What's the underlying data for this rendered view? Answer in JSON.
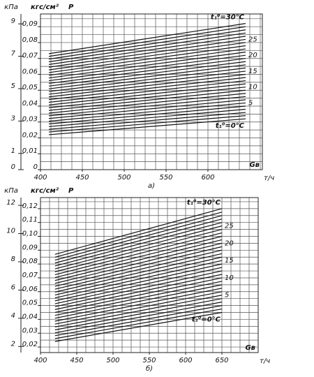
{
  "chart_data": [
    {
      "type": "line",
      "y2label": "кПа",
      "ylabel": "кгс/см²",
      "var_label": "P",
      "xvar": "Gв",
      "xlabel": "т/ч",
      "caption": "а)",
      "xlim": [
        400,
        665
      ],
      "xticks": [
        400,
        450,
        500,
        550,
        600
      ],
      "ylim": [
        0,
        0.098
      ],
      "yticks": [
        0,
        {
          "value": 0.01,
          "label": "0,01"
        },
        {
          "value": 0.02,
          "label": "0,02"
        },
        {
          "value": 0.03,
          "label": "0,03"
        },
        {
          "value": 0.04,
          "label": "0,04"
        },
        {
          "value": 0.05,
          "label": "0,05"
        },
        {
          "value": 0.06,
          "label": "0,06"
        },
        {
          "value": 0.07,
          "label": "0,07"
        },
        {
          "value": 0.08,
          "label": "0,08"
        },
        {
          "value": 0.09,
          "label": "0,09"
        }
      ],
      "y2lim": [
        0,
        9.61
      ],
      "y2ticks": [
        0,
        1,
        3,
        5,
        7,
        9
      ],
      "xgrid": [
        400,
        412.5,
        425,
        437.5,
        450,
        462.5,
        475,
        487.5,
        500,
        512.5,
        525,
        537.5,
        550,
        562.5,
        575,
        587.5,
        600,
        612.5,
        625,
        637.5,
        650,
        662.5
      ],
      "ygrid": [
        0,
        0.005,
        0.01,
        0.015,
        0.02,
        0.025,
        0.03,
        0.035,
        0.04,
        0.045,
        0.05,
        0.055,
        0.06,
        0.065,
        0.07,
        0.075,
        0.08,
        0.085,
        0.09,
        0.095
      ],
      "color": "#111111",
      "x": [
        410,
        645
      ],
      "series": [
        {
          "name": "t₁⁰=0°C",
          "values": [
            0.022,
            0.032
          ]
        },
        {
          "values": [
            0.0237,
            0.034
          ]
        },
        {
          "values": [
            0.0254,
            0.036
          ]
        },
        {
          "values": [
            0.0271,
            0.038
          ]
        },
        {
          "values": [
            0.0288,
            0.04
          ]
        },
        {
          "name": "5",
          "values": [
            0.0305,
            0.042
          ]
        },
        {
          "values": [
            0.0322,
            0.044
          ]
        },
        {
          "values": [
            0.0339,
            0.046
          ]
        },
        {
          "values": [
            0.0356,
            0.048
          ]
        },
        {
          "values": [
            0.0373,
            0.05
          ]
        },
        {
          "name": "10",
          "values": [
            0.039,
            0.052
          ]
        },
        {
          "values": [
            0.0407,
            0.054
          ]
        },
        {
          "values": [
            0.0424,
            0.056
          ]
        },
        {
          "values": [
            0.0441,
            0.058
          ]
        },
        {
          "values": [
            0.0458,
            0.06
          ]
        },
        {
          "name": "15",
          "values": [
            0.0475,
            0.062
          ]
        },
        {
          "values": [
            0.0492,
            0.064
          ]
        },
        {
          "values": [
            0.0509,
            0.066
          ]
        },
        {
          "values": [
            0.0526,
            0.068
          ]
        },
        {
          "values": [
            0.0543,
            0.07
          ]
        },
        {
          "name": "20",
          "values": [
            0.056,
            0.072
          ]
        },
        {
          "values": [
            0.0577,
            0.074
          ]
        },
        {
          "values": [
            0.0594,
            0.076
          ]
        },
        {
          "values": [
            0.0611,
            0.078
          ]
        },
        {
          "values": [
            0.0628,
            0.08
          ]
        },
        {
          "name": "25",
          "values": [
            0.0645,
            0.082
          ]
        },
        {
          "values": [
            0.0662,
            0.084
          ]
        },
        {
          "values": [
            0.0679,
            0.086
          ]
        },
        {
          "values": [
            0.0696,
            0.088
          ]
        },
        {
          "values": [
            0.0713,
            0.09
          ]
        },
        {
          "name": "t₁⁰=30°C",
          "values": [
            0.073,
            0.092
          ]
        }
      ]
    },
    {
      "type": "line",
      "y2label": "кПа",
      "ylabel": "кгс/см²",
      "var_label": "P",
      "xvar": "Gв",
      "xlabel": "т/ч",
      "caption": "б)",
      "xlim": [
        400,
        700
      ],
      "xticks": [
        400,
        450,
        500,
        550,
        600,
        650
      ],
      "ylim": [
        0.016,
        0.128
      ],
      "yticks": [
        {
          "value": 0.02,
          "label": "0,02"
        },
        {
          "value": 0.03,
          "label": "0,03"
        },
        {
          "value": 0.04,
          "label": "0,04"
        },
        {
          "value": 0.05,
          "label": "0,05"
        },
        {
          "value": 0.06,
          "label": "0,06"
        },
        {
          "value": 0.07,
          "label": "0,07"
        },
        {
          "value": 0.08,
          "label": "0,08"
        },
        {
          "value": 0.09,
          "label": "0,09"
        },
        {
          "value": 0.1,
          "label": "0,10"
        },
        {
          "value": 0.11,
          "label": "0,11"
        },
        {
          "value": 0.12,
          "label": "0,12"
        }
      ],
      "y2lim": [
        1.57,
        12.55
      ],
      "y2ticks": [
        2,
        4,
        6,
        8,
        10,
        12
      ],
      "xgrid": [
        400,
        412.5,
        425,
        437.5,
        450,
        462.5,
        475,
        487.5,
        500,
        512.5,
        525,
        537.5,
        550,
        562.5,
        575,
        587.5,
        600,
        612.5,
        625,
        637.5,
        650,
        662.5,
        675,
        687.5,
        700
      ],
      "ygrid": [
        0.02,
        0.025,
        0.03,
        0.035,
        0.04,
        0.045,
        0.05,
        0.055,
        0.06,
        0.065,
        0.07,
        0.075,
        0.08,
        0.085,
        0.09,
        0.095,
        0.1,
        0.105,
        0.11,
        0.115,
        0.12,
        0.125
      ],
      "color": "#111111",
      "x": [
        420,
        650
      ],
      "series": [
        {
          "name": "t₁⁰=0°C",
          "values": [
            0.024,
            0.045
          ]
        },
        {
          "values": [
            0.0261,
            0.0475
          ]
        },
        {
          "values": [
            0.0282,
            0.05
          ]
        },
        {
          "values": [
            0.0303,
            0.0525
          ]
        },
        {
          "values": [
            0.0324,
            0.055
          ]
        },
        {
          "name": "5",
          "values": [
            0.0345,
            0.0575
          ]
        },
        {
          "values": [
            0.0366,
            0.06
          ]
        },
        {
          "values": [
            0.0387,
            0.0625
          ]
        },
        {
          "values": [
            0.0408,
            0.065
          ]
        },
        {
          "values": [
            0.0429,
            0.0675
          ]
        },
        {
          "name": "10",
          "values": [
            0.045,
            0.07
          ]
        },
        {
          "values": [
            0.0471,
            0.0725
          ]
        },
        {
          "values": [
            0.0492,
            0.075
          ]
        },
        {
          "values": [
            0.0513,
            0.0775
          ]
        },
        {
          "values": [
            0.0534,
            0.08
          ]
        },
        {
          "name": "15",
          "values": [
            0.0555,
            0.0825
          ]
        },
        {
          "values": [
            0.0576,
            0.085
          ]
        },
        {
          "values": [
            0.0597,
            0.0875
          ]
        },
        {
          "values": [
            0.0618,
            0.09
          ]
        },
        {
          "values": [
            0.0639,
            0.0925
          ]
        },
        {
          "name": "20",
          "values": [
            0.066,
            0.095
          ]
        },
        {
          "values": [
            0.0681,
            0.0975
          ]
        },
        {
          "values": [
            0.0702,
            0.1
          ]
        },
        {
          "values": [
            0.0723,
            0.1025
          ]
        },
        {
          "values": [
            0.0744,
            0.105
          ]
        },
        {
          "name": "25",
          "values": [
            0.0765,
            0.1075
          ]
        },
        {
          "values": [
            0.0786,
            0.11
          ]
        },
        {
          "values": [
            0.0807,
            0.1125
          ]
        },
        {
          "values": [
            0.0828,
            0.115
          ]
        },
        {
          "values": [
            0.0849,
            0.1175
          ]
        },
        {
          "name": "t₁⁰=30°C",
          "values": [
            0.087,
            0.12
          ]
        }
      ]
    }
  ]
}
